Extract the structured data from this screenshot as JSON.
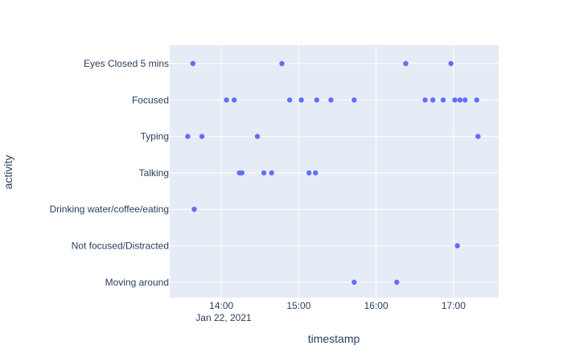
{
  "chart_data": {
    "type": "scatter",
    "xlabel": "timestamp",
    "ylabel": "activity",
    "date_label": "Jan 22, 2021",
    "categories": [
      "Eyes Closed 5 mins",
      "Focused",
      "Typing",
      "Talking",
      "Drinking water/coffee/eating",
      "Not focused/Distracted",
      "Moving around"
    ],
    "xlim": [
      "13:20",
      "17:35"
    ],
    "x_ticks": [
      "14:00",
      "15:00",
      "16:00",
      "17:00"
    ],
    "grid": true,
    "plot_background": "#e5ecf6",
    "marker_color": "#636efa",
    "points": [
      {
        "x": "13:38",
        "y": "Eyes Closed 5 mins"
      },
      {
        "x": "14:47",
        "y": "Eyes Closed 5 mins"
      },
      {
        "x": "16:23",
        "y": "Eyes Closed 5 mins"
      },
      {
        "x": "16:58",
        "y": "Eyes Closed 5 mins"
      },
      {
        "x": "14:04",
        "y": "Focused"
      },
      {
        "x": "14:10",
        "y": "Focused"
      },
      {
        "x": "14:53",
        "y": "Focused"
      },
      {
        "x": "15:02",
        "y": "Focused"
      },
      {
        "x": "15:14",
        "y": "Focused"
      },
      {
        "x": "15:25",
        "y": "Focused"
      },
      {
        "x": "15:43",
        "y": "Focused"
      },
      {
        "x": "16:38",
        "y": "Focused"
      },
      {
        "x": "16:44",
        "y": "Focused"
      },
      {
        "x": "16:52",
        "y": "Focused"
      },
      {
        "x": "17:01",
        "y": "Focused"
      },
      {
        "x": "17:05",
        "y": "Focused"
      },
      {
        "x": "17:09",
        "y": "Focused"
      },
      {
        "x": "17:18",
        "y": "Focused"
      },
      {
        "x": "13:34",
        "y": "Typing"
      },
      {
        "x": "13:45",
        "y": "Typing"
      },
      {
        "x": "14:28",
        "y": "Typing"
      },
      {
        "x": "17:19",
        "y": "Typing"
      },
      {
        "x": "14:14",
        "y": "Talking"
      },
      {
        "x": "14:15",
        "y": "Talking"
      },
      {
        "x": "14:16",
        "y": "Talking"
      },
      {
        "x": "14:33",
        "y": "Talking"
      },
      {
        "x": "14:39",
        "y": "Talking"
      },
      {
        "x": "15:08",
        "y": "Talking"
      },
      {
        "x": "15:13",
        "y": "Talking"
      },
      {
        "x": "13:39",
        "y": "Drinking water/coffee/eating"
      },
      {
        "x": "17:03",
        "y": "Not focused/Distracted"
      },
      {
        "x": "15:43",
        "y": "Moving around"
      },
      {
        "x": "16:16",
        "y": "Moving around"
      }
    ]
  }
}
